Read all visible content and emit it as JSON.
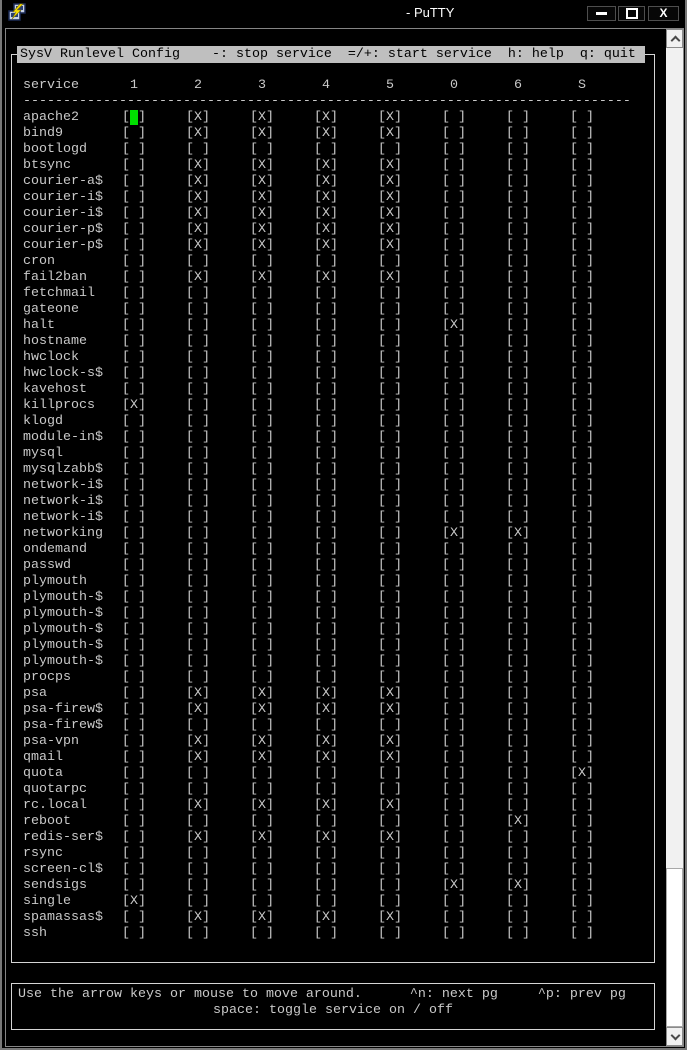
{
  "window": {
    "title": "- PuTTY",
    "controls": {
      "close_glyph": "X"
    }
  },
  "colors": {
    "terminal_foreground": "#c9c9c9",
    "terminal_background": "#000000",
    "menu_bar_background": "#bfbfbf",
    "cursor_green": "#00e000",
    "scrollbar_track": "#f1f1f1",
    "scrollbar_thumb": "#ffffff"
  },
  "terminal": {
    "menu_bar": "SysV Runlevel Config    -: stop service  =/+: start service  h: help  q: quit",
    "columns": {
      "service_label": "service",
      "runlevels": [
        "1",
        "2",
        "3",
        "4",
        "5",
        "0",
        "6",
        "S"
      ]
    },
    "separator": "----------------------------------------------------------------------------",
    "cursor_position": {
      "service": "apache2",
      "runlevel": "1"
    },
    "footer_line1": "Use the arrow keys or mouse to move around.      ^n: next pg     ^p: prev pg",
    "footer_line2": "space: toggle service on / off",
    "services": [
      {
        "name": "apache2",
        "runlevels": [
          "cursor",
          "X",
          "X",
          "X",
          "X",
          "",
          "",
          ""
        ]
      },
      {
        "name": "bind9",
        "runlevels": [
          "",
          "X",
          "X",
          "X",
          "X",
          "",
          "",
          ""
        ]
      },
      {
        "name": "bootlogd",
        "runlevels": [
          "",
          "",
          "",
          "",
          "",
          "",
          "",
          ""
        ]
      },
      {
        "name": "btsync",
        "runlevels": [
          "",
          "X",
          "X",
          "X",
          "X",
          "",
          "",
          ""
        ]
      },
      {
        "name": "courier-a$",
        "runlevels": [
          "",
          "X",
          "X",
          "X",
          "X",
          "",
          "",
          ""
        ]
      },
      {
        "name": "courier-i$",
        "runlevels": [
          "",
          "X",
          "X",
          "X",
          "X",
          "",
          "",
          ""
        ]
      },
      {
        "name": "courier-i$",
        "runlevels": [
          "",
          "X",
          "X",
          "X",
          "X",
          "",
          "",
          ""
        ]
      },
      {
        "name": "courier-p$",
        "runlevels": [
          "",
          "X",
          "X",
          "X",
          "X",
          "",
          "",
          ""
        ]
      },
      {
        "name": "courier-p$",
        "runlevels": [
          "",
          "X",
          "X",
          "X",
          "X",
          "",
          "",
          ""
        ]
      },
      {
        "name": "cron",
        "runlevels": [
          "",
          "",
          "",
          "",
          "",
          "",
          "",
          ""
        ]
      },
      {
        "name": "fail2ban",
        "runlevels": [
          "",
          "X",
          "X",
          "X",
          "X",
          "",
          "",
          ""
        ]
      },
      {
        "name": "fetchmail",
        "runlevels": [
          "",
          "",
          "",
          "",
          "",
          "",
          "",
          ""
        ]
      },
      {
        "name": "gateone",
        "runlevels": [
          "",
          "",
          "",
          "",
          "",
          "",
          "",
          ""
        ]
      },
      {
        "name": "halt",
        "runlevels": [
          "",
          "",
          "",
          "",
          "",
          "X",
          "",
          ""
        ]
      },
      {
        "name": "hostname",
        "runlevels": [
          "",
          "",
          "",
          "",
          "",
          "",
          "",
          ""
        ]
      },
      {
        "name": "hwclock",
        "runlevels": [
          "",
          "",
          "",
          "",
          "",
          "",
          "",
          ""
        ]
      },
      {
        "name": "hwclock-s$",
        "runlevels": [
          "",
          "",
          "",
          "",
          "",
          "",
          "",
          ""
        ]
      },
      {
        "name": "kavehost",
        "runlevels": [
          "",
          "",
          "",
          "",
          "",
          "",
          "",
          ""
        ]
      },
      {
        "name": "killprocs",
        "runlevels": [
          "X",
          "",
          "",
          "",
          "",
          "",
          "",
          ""
        ]
      },
      {
        "name": "klogd",
        "runlevels": [
          "",
          "",
          "",
          "",
          "",
          "",
          "",
          ""
        ]
      },
      {
        "name": "module-in$",
        "runlevels": [
          "",
          "",
          "",
          "",
          "",
          "",
          "",
          ""
        ]
      },
      {
        "name": "mysql",
        "runlevels": [
          "",
          "",
          "",
          "",
          "",
          "",
          "",
          ""
        ]
      },
      {
        "name": "mysqlzabb$",
        "runlevels": [
          "",
          "",
          "",
          "",
          "",
          "",
          "",
          ""
        ]
      },
      {
        "name": "network-i$",
        "runlevels": [
          "",
          "",
          "",
          "",
          "",
          "",
          "",
          ""
        ]
      },
      {
        "name": "network-i$",
        "runlevels": [
          "",
          "",
          "",
          "",
          "",
          "",
          "",
          ""
        ]
      },
      {
        "name": "network-i$",
        "runlevels": [
          "",
          "",
          "",
          "",
          "",
          "",
          "",
          ""
        ]
      },
      {
        "name": "networking",
        "runlevels": [
          "",
          "",
          "",
          "",
          "",
          "X",
          "X",
          ""
        ]
      },
      {
        "name": "ondemand",
        "runlevels": [
          "",
          "",
          "",
          "",
          "",
          "",
          "",
          ""
        ]
      },
      {
        "name": "passwd",
        "runlevels": [
          "",
          "",
          "",
          "",
          "",
          "",
          "",
          ""
        ]
      },
      {
        "name": "plymouth",
        "runlevels": [
          "",
          "",
          "",
          "",
          "",
          "",
          "",
          ""
        ]
      },
      {
        "name": "plymouth-$",
        "runlevels": [
          "",
          "",
          "",
          "",
          "",
          "",
          "",
          ""
        ]
      },
      {
        "name": "plymouth-$",
        "runlevels": [
          "",
          "",
          "",
          "",
          "",
          "",
          "",
          ""
        ]
      },
      {
        "name": "plymouth-$",
        "runlevels": [
          "",
          "",
          "",
          "",
          "",
          "",
          "",
          ""
        ]
      },
      {
        "name": "plymouth-$",
        "runlevels": [
          "",
          "",
          "",
          "",
          "",
          "",
          "",
          ""
        ]
      },
      {
        "name": "plymouth-$",
        "runlevels": [
          "",
          "",
          "",
          "",
          "",
          "",
          "",
          ""
        ]
      },
      {
        "name": "procps",
        "runlevels": [
          "",
          "",
          "",
          "",
          "",
          "",
          "",
          ""
        ]
      },
      {
        "name": "psa",
        "runlevels": [
          "",
          "X",
          "X",
          "X",
          "X",
          "",
          "",
          ""
        ]
      },
      {
        "name": "psa-firew$",
        "runlevels": [
          "",
          "X",
          "X",
          "X",
          "X",
          "",
          "",
          ""
        ]
      },
      {
        "name": "psa-firew$",
        "runlevels": [
          "",
          "",
          "",
          "",
          "",
          "",
          "",
          ""
        ]
      },
      {
        "name": "psa-vpn",
        "runlevels": [
          "",
          "X",
          "X",
          "X",
          "X",
          "",
          "",
          ""
        ]
      },
      {
        "name": "qmail",
        "runlevels": [
          "",
          "X",
          "X",
          "X",
          "X",
          "",
          "",
          ""
        ]
      },
      {
        "name": "quota",
        "runlevels": [
          "",
          "",
          "",
          "",
          "",
          "",
          "",
          "X"
        ]
      },
      {
        "name": "quotarpc",
        "runlevels": [
          "",
          "",
          "",
          "",
          "",
          "",
          "",
          ""
        ]
      },
      {
        "name": "rc.local",
        "runlevels": [
          "",
          "X",
          "X",
          "X",
          "X",
          "",
          "",
          ""
        ]
      },
      {
        "name": "reboot",
        "runlevels": [
          "",
          "",
          "",
          "",
          "",
          "",
          "X",
          ""
        ]
      },
      {
        "name": "redis-ser$",
        "runlevels": [
          "",
          "X",
          "X",
          "X",
          "X",
          "",
          "",
          ""
        ]
      },
      {
        "name": "rsync",
        "runlevels": [
          "",
          "",
          "",
          "",
          "",
          "",
          "",
          ""
        ]
      },
      {
        "name": "screen-cl$",
        "runlevels": [
          "",
          "",
          "",
          "",
          "",
          "",
          "",
          ""
        ]
      },
      {
        "name": "sendsigs",
        "runlevels": [
          "",
          "",
          "",
          "",
          "",
          "X",
          "X",
          ""
        ]
      },
      {
        "name": "single",
        "runlevels": [
          "X",
          "",
          "",
          "",
          "",
          "",
          "",
          ""
        ]
      },
      {
        "name": "spamassas$",
        "runlevels": [
          "",
          "X",
          "X",
          "X",
          "X",
          "",
          "",
          ""
        ]
      },
      {
        "name": "ssh",
        "runlevels": [
          "",
          "",
          "",
          "",
          "",
          "",
          "",
          ""
        ]
      }
    ]
  }
}
